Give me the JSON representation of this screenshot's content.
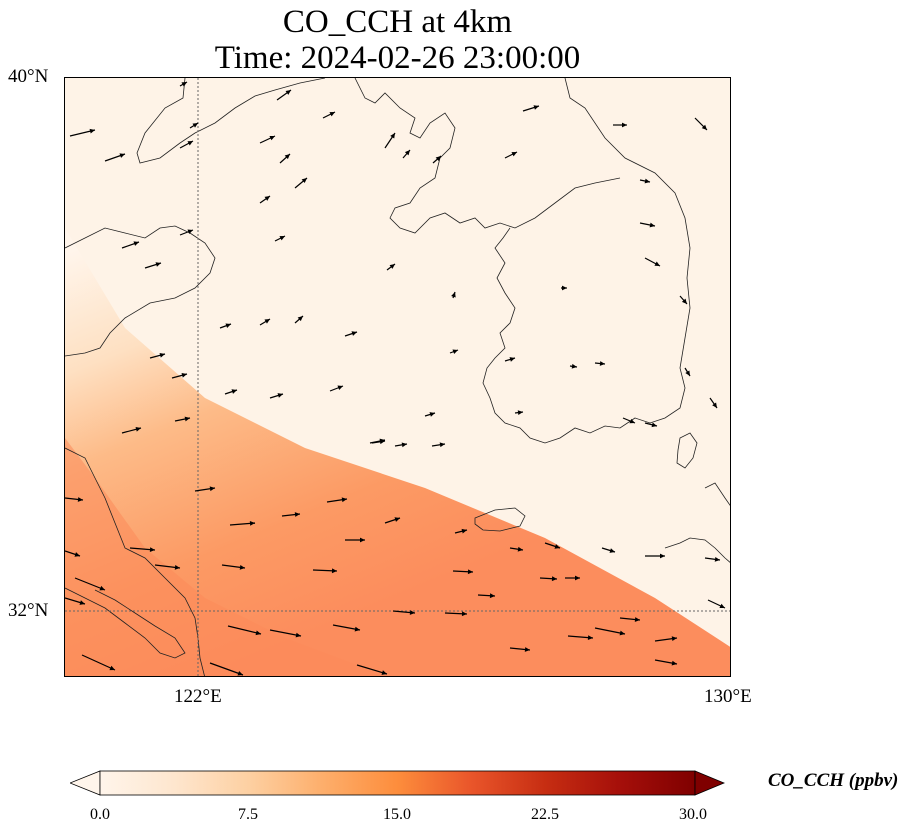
{
  "title": {
    "line1": "CO_CCH at 4km",
    "line2": "Time: 2024-02-26 23:00:00"
  },
  "axes": {
    "lat_labels": [
      "40°N",
      "32°N"
    ],
    "lon_labels": [
      "122°E",
      "130°E"
    ],
    "lat_range": [
      31.0,
      40.0
    ],
    "lon_range": [
      120.0,
      130.0
    ],
    "gridlines": {
      "lats": [
        32
      ],
      "lons": [
        122
      ]
    }
  },
  "colorbar": {
    "label": "CO_CCH (ppbv)",
    "ticks": [
      "0.0",
      "7.5",
      "15.0",
      "22.5",
      "30.0"
    ],
    "range": [
      0,
      30
    ],
    "colormap": [
      "#fff5eb",
      "#fee6ce",
      "#fdd0a2",
      "#fdae6b",
      "#fd8d3c",
      "#f16913",
      "#d94801",
      "#a63603",
      "#7f2704"
    ],
    "extend": "both"
  },
  "field": {
    "description_values_ppbv": {
      "northeast_background": 0.5,
      "southwest_plume_max": 13
    }
  }
}
